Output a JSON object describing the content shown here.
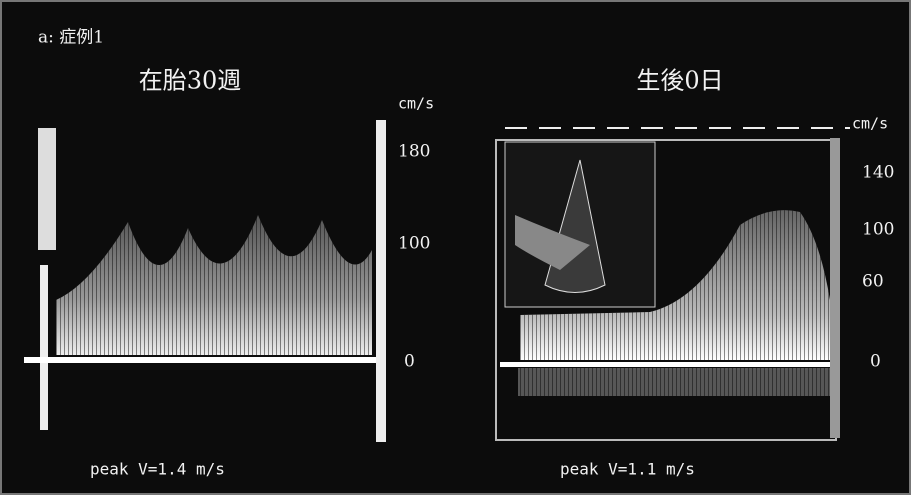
{
  "figure_label": "a: 症例1",
  "panels": [
    {
      "title": "在胎30週",
      "unit": "cm/s",
      "ticks": [
        180,
        100,
        0
      ],
      "caption": "peak V=1.4 m/s"
    },
    {
      "title": "生後0日",
      "unit": "cm/s",
      "ticks": [
        140,
        100,
        60,
        0
      ],
      "caption": "peak V=1.1 m/s"
    }
  ]
}
